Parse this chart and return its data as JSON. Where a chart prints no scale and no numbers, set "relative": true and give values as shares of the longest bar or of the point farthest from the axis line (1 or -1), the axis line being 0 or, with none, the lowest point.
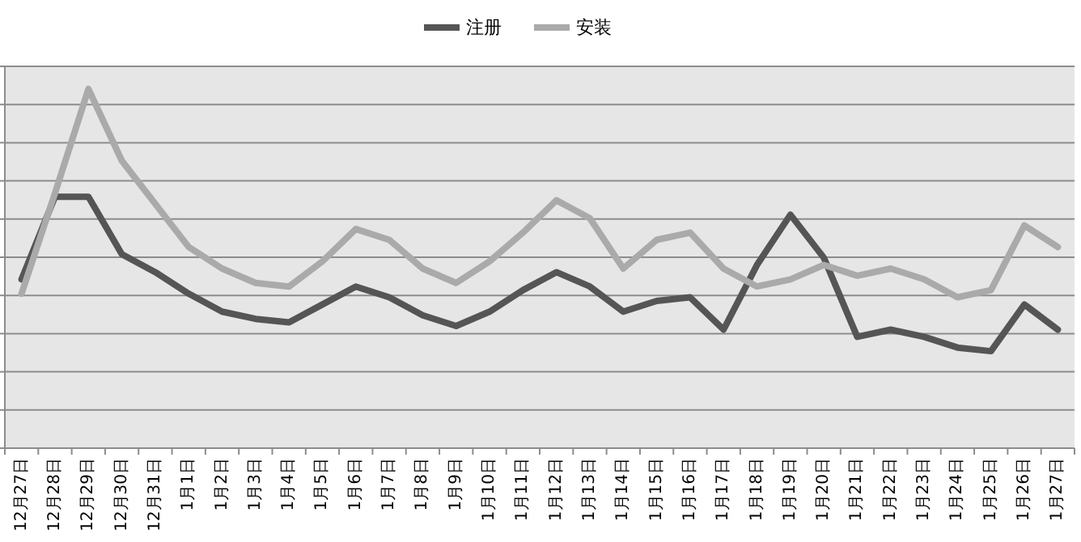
{
  "chart_data": {
    "type": "line",
    "relative": true,
    "grid": "y",
    "legend": "top",
    "categories": [
      "12月27日",
      "12月28日",
      "12月29日",
      "12月30日",
      "12月31日",
      "1月1日",
      "1月2日",
      "1月3日",
      "1月4日",
      "1月5日",
      "1月6日",
      "1月7日",
      "1月8日",
      "1月9日",
      "1月10日",
      "1月11日",
      "1月12日",
      "1月13日",
      "1月14日",
      "1月15日",
      "1月16日",
      "1月17日",
      "1月18日",
      "1月19日",
      "1月20日",
      "1月21日",
      "1月22日",
      "1月23日",
      "1月24日",
      "1月25日",
      "1月26日",
      "1月27日"
    ],
    "series": [
      {
        "name": "注册",
        "color": "#555555",
        "values": [
          0.47,
          0.7,
          0.7,
          0.54,
          0.49,
          0.43,
          0.38,
          0.36,
          0.35,
          0.4,
          0.45,
          0.42,
          0.37,
          0.34,
          0.38,
          0.44,
          0.49,
          0.45,
          0.38,
          0.41,
          0.42,
          0.33,
          0.51,
          0.65,
          0.53,
          0.31,
          0.33,
          0.31,
          0.28,
          0.27,
          0.4,
          0.33
        ]
      },
      {
        "name": "安装",
        "color": "#aaaaaa",
        "values": [
          0.43,
          0.71,
          1,
          0.8,
          0.68,
          0.56,
          0.5,
          0.46,
          0.45,
          0.52,
          0.61,
          0.58,
          0.5,
          0.46,
          0.52,
          0.6,
          0.69,
          0.64,
          0.5,
          0.58,
          0.6,
          0.5,
          0.45,
          0.47,
          0.51,
          0.48,
          0.5,
          0.47,
          0.42,
          0.44,
          0.62,
          0.56
        ]
      }
    ]
  }
}
